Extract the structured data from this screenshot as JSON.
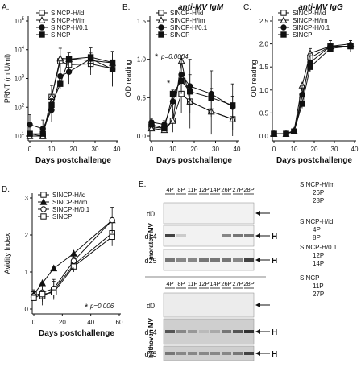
{
  "chart_data": [
    {
      "panel": "A.",
      "type": "line",
      "title": "",
      "xlabel": "Days postchallenge",
      "ylabel": "PRNT (mIU/ml)",
      "x": [
        0,
        6,
        10,
        14,
        18,
        28,
        38
      ],
      "xlim": [
        0,
        40
      ],
      "xticks": [
        "0",
        "10",
        "20",
        "30",
        "40"
      ],
      "yscale": "log",
      "ylim": [
        10,
        100000
      ],
      "yticks": [
        "10^1",
        "10^2",
        "10^3",
        "10^4",
        "10^5"
      ],
      "legend": "top-left",
      "series": [
        {
          "name": "SINCP-H/id",
          "marker": "square-open",
          "values": [
            12,
            10,
            230,
            4000,
            3000,
            3200,
            2200
          ]
        },
        {
          "name": "SINCP-H/im",
          "marker": "triangle-open",
          "values": [
            10,
            10,
            230,
            5000,
            4800,
            4200,
            3500
          ]
        },
        {
          "name": "SINCP-H/0.1",
          "marker": "circle-filled",
          "values": [
            25,
            18,
            80,
            1200,
            1700,
            4800,
            2100
          ]
        },
        {
          "name": "SINCP",
          "marker": "square-filled",
          "values": [
            12,
            12,
            120,
            650,
            4700,
            5500,
            3600
          ]
        }
      ],
      "error_high": [
        1.2,
        1.0,
        1.5,
        1.8,
        1.6,
        1.4,
        3.0
      ]
    },
    {
      "panel": "B.",
      "type": "line",
      "title": "anti-MV IgM",
      "xlabel": "Days postchallenge",
      "ylabel": "OD reading",
      "x": [
        0,
        6,
        10,
        14,
        18,
        28,
        38
      ],
      "xlim": [
        0,
        40
      ],
      "xticks": [
        "0",
        "10",
        "20",
        "30",
        "40"
      ],
      "ylim": [
        0,
        1.5
      ],
      "yticks": [
        "0.0",
        "0.5",
        "1.0",
        "1.5"
      ],
      "legend": "top-right",
      "annotations": [
        "* p=0.0004",
        "*"
      ],
      "series": [
        {
          "name": "SINCP-H/id",
          "marker": "square-open",
          "values": [
            0.12,
            0.1,
            0.2,
            0.55,
            0.45,
            0.32,
            0.22
          ]
        },
        {
          "name": "SINCP-H/im",
          "marker": "triangle-open",
          "values": [
            0.1,
            0.08,
            0.2,
            0.98,
            0.45,
            0.32,
            0.22
          ]
        },
        {
          "name": "SINCP-H/0.1",
          "marker": "circle-filled",
          "values": [
            0.18,
            0.15,
            0.45,
            0.8,
            0.65,
            0.55,
            0.38
          ]
        },
        {
          "name": "SINCP",
          "marker": "square-filled",
          "values": [
            0.15,
            0.1,
            0.55,
            0.72,
            0.58,
            0.5,
            0.4
          ]
        }
      ],
      "error_high": [
        0.05,
        0.05,
        0.15,
        0.25,
        0.35,
        0.3,
        0.3
      ]
    },
    {
      "panel": "C.",
      "type": "line",
      "title": "anti-MV IgG",
      "xlabel": "Days postchallenge",
      "ylabel": "OD reading",
      "x": [
        0,
        6,
        10,
        14,
        18,
        28,
        38
      ],
      "xlim": [
        0,
        40
      ],
      "xticks": [
        "0",
        "10",
        "20",
        "30",
        "40"
      ],
      "ylim": [
        0,
        2.5
      ],
      "yticks": [
        "0.0",
        "0.5",
        "1.0",
        "1.5",
        "2.0",
        "2.5"
      ],
      "legend": "top-left",
      "series": [
        {
          "name": "SINCP-H/id",
          "marker": "square-open",
          "values": [
            0.05,
            0.05,
            0.1,
            0.8,
            1.7,
            1.95,
            1.95
          ]
        },
        {
          "name": "SINCP-H/im",
          "marker": "triangle-open",
          "values": [
            0.05,
            0.05,
            0.12,
            1.1,
            1.8,
            1.95,
            2.0
          ]
        },
        {
          "name": "SINCP-H/0.1",
          "marker": "circle-filled",
          "values": [
            0.05,
            0.05,
            0.1,
            0.9,
            1.6,
            1.95,
            1.95
          ]
        },
        {
          "name": "SINCP",
          "marker": "square-filled",
          "values": [
            0.05,
            0.05,
            0.1,
            0.7,
            1.5,
            1.9,
            1.95
          ]
        }
      ],
      "error_high": [
        0.02,
        0.02,
        0.05,
        0.2,
        0.2,
        0.12,
        0.12
      ]
    },
    {
      "panel": "D.",
      "type": "line",
      "title": "",
      "xlabel": "Days postchallenge",
      "ylabel": "Avidity Index",
      "x": [
        0,
        6,
        14,
        28,
        55
      ],
      "xlim": [
        0,
        60
      ],
      "xticks": [
        "0",
        "20",
        "40",
        "60"
      ],
      "ylim": [
        0,
        3
      ],
      "yticks": [
        "0",
        "1",
        "2",
        "3"
      ],
      "legend": "top-left",
      "annotations": [
        "* p=0.006",
        "*"
      ],
      "series": [
        {
          "name": "SINCP-H/id",
          "marker": "square-open",
          "values": [
            0.4,
            0.35,
            0.5,
            1.2,
            2.05
          ]
        },
        {
          "name": "SINCP-H/im",
          "marker": "triangle-filled",
          "values": [
            0.4,
            0.7,
            1.1,
            1.5,
            2.4
          ]
        },
        {
          "name": "SINCP-H/0.1",
          "marker": "circle-open",
          "values": [
            0.35,
            0.45,
            0.55,
            1.3,
            2.4
          ]
        },
        {
          "name": "SINCP",
          "marker": "square-open",
          "values": [
            0.3,
            0.4,
            0.45,
            1.15,
            1.95
          ]
        }
      ],
      "error_high": [
        0.12,
        0.25,
        0.25,
        0.2,
        0.35
      ]
    }
  ],
  "blot": {
    "panel": "E.",
    "columns": [
      "4P",
      "8P",
      "11P",
      "12P",
      "14P",
      "26P",
      "27P",
      "28P"
    ],
    "section1_label": "moraten MV",
    "section2_label": "bilthoven MV",
    "rows": [
      "d0",
      "d14",
      "d25"
    ],
    "band_marker": "H",
    "groups": [
      {
        "name": "SINCP-H/im",
        "lines": [
          "26P",
          "28P"
        ]
      },
      {
        "name": "SINCP-H/id",
        "lines": [
          "4P",
          "8P"
        ]
      },
      {
        "name": "SINCP-H/0.1",
        "lines": [
          "12P",
          "14P"
        ]
      },
      {
        "name": "SINCP",
        "lines": [
          "11P",
          "27P"
        ]
      }
    ],
    "intensity": {
      "moraten": {
        "d0": [
          0.0,
          0.0,
          0.0,
          0.0,
          0.0,
          0.0,
          0.0,
          0.0
        ],
        "d14": [
          0.9,
          0.1,
          0.0,
          0.0,
          0.0,
          0.5,
          0.6,
          0.6
        ],
        "d25": [
          0.6,
          0.5,
          0.5,
          0.6,
          0.6,
          0.6,
          0.5,
          0.9
        ]
      },
      "bilthoven": {
        "d0": [
          0.0,
          0.0,
          0.0,
          0.0,
          0.0,
          0.0,
          0.0,
          0.0
        ],
        "d14": [
          0.8,
          0.5,
          0.4,
          0.2,
          0.3,
          0.6,
          0.8,
          1.0
        ],
        "d25": [
          0.6,
          0.5,
          0.5,
          0.5,
          0.5,
          0.5,
          0.6,
          0.9
        ]
      }
    }
  }
}
